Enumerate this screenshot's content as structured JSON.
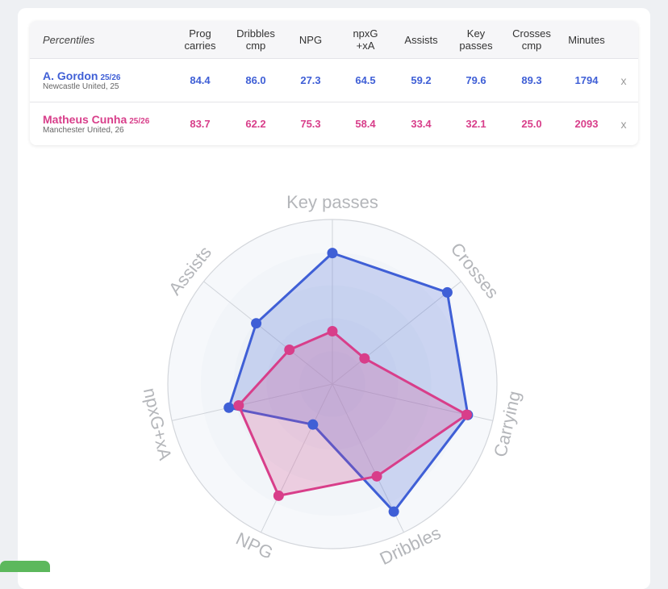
{
  "table": {
    "title": "Percentiles",
    "columns": [
      "Prog\ncarries",
      "Dribbles\ncmp",
      "NPG",
      "npxG\n+xA",
      "Assists",
      "Key\npasses",
      "Crosses\ncmp",
      "Minutes"
    ],
    "remove_label": "x",
    "players": [
      {
        "name": "A. Gordon",
        "season": "25/26",
        "team": "Newcastle United, 25",
        "values": [
          "84.4",
          "86.0",
          "27.3",
          "64.5",
          "59.2",
          "79.6",
          "89.3",
          "1794"
        ],
        "color": "#3f5fd6"
      },
      {
        "name": "Matheus Cunha",
        "season": "25/26",
        "team": "Manchester United, 26",
        "values": [
          "83.7",
          "62.2",
          "75.3",
          "58.4",
          "33.4",
          "32.1",
          "25.0",
          "2093"
        ],
        "color": "#d83e8a"
      }
    ]
  },
  "chart_data": {
    "type": "radar",
    "axes": [
      "Key passes",
      "Crosses",
      "Carrying",
      "Dribbles",
      "NPG",
      "npxG+xA",
      "Assists"
    ],
    "rlim": [
      0,
      100
    ],
    "grid": true,
    "series": [
      {
        "name": "A. Gordon",
        "color": "#3f5fd6",
        "values": [
          79.6,
          89.3,
          84.4,
          86.0,
          27.3,
          64.5,
          59.2
        ]
      },
      {
        "name": "Matheus Cunha",
        "color": "#d83e8a",
        "values": [
          32.1,
          25.0,
          83.7,
          62.2,
          75.3,
          58.4,
          33.4
        ]
      }
    ]
  }
}
